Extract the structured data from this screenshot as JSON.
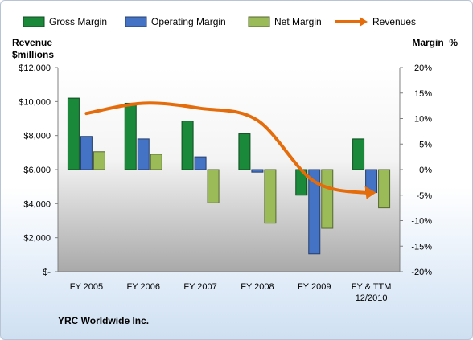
{
  "chart_data": {
    "type": "bar",
    "categories": [
      "FY 2005",
      "FY 2006",
      "FY 2007",
      "FY 2008",
      "FY 2009",
      "FY & TTM 12/2010"
    ],
    "series": [
      {
        "name": "Gross Margin",
        "axis": "right",
        "color": "#1a8a3a",
        "values": [
          14,
          13,
          9.5,
          7,
          -5,
          6
        ]
      },
      {
        "name": "Operating Margin",
        "axis": "right",
        "color": "#4472c4",
        "values": [
          6.5,
          6,
          2.5,
          -0.5,
          -16.5,
          -4.5
        ]
      },
      {
        "name": "Net Margin",
        "axis": "right",
        "color": "#9bbb59",
        "values": [
          3.5,
          3,
          -6.5,
          -10.5,
          -11.5,
          -7.5
        ]
      },
      {
        "name": "Revenues",
        "type": "line",
        "axis": "left",
        "color": "#e46c0a",
        "values": [
          9300,
          9900,
          9600,
          8900,
          5300,
          4600
        ]
      }
    ],
    "left_axis": {
      "label_line1": "Revenue",
      "label_line2": "$millions",
      "min": 0,
      "max": 12000,
      "step": 2000,
      "ticks": [
        "$-",
        "$2,000",
        "$4,000",
        "$6,000",
        "$8,000",
        "$10,000",
        "$12,000"
      ]
    },
    "right_axis": {
      "label": "Margin  %",
      "min": -20,
      "max": 20,
      "step": 5,
      "ticks": [
        "-20%",
        "-15%",
        "-10%",
        "-5%",
        "0%",
        "5%",
        "10%",
        "15%",
        "20%"
      ]
    },
    "legend_position": "top",
    "grid": false,
    "footnote": "YRC Worldwide Inc."
  }
}
